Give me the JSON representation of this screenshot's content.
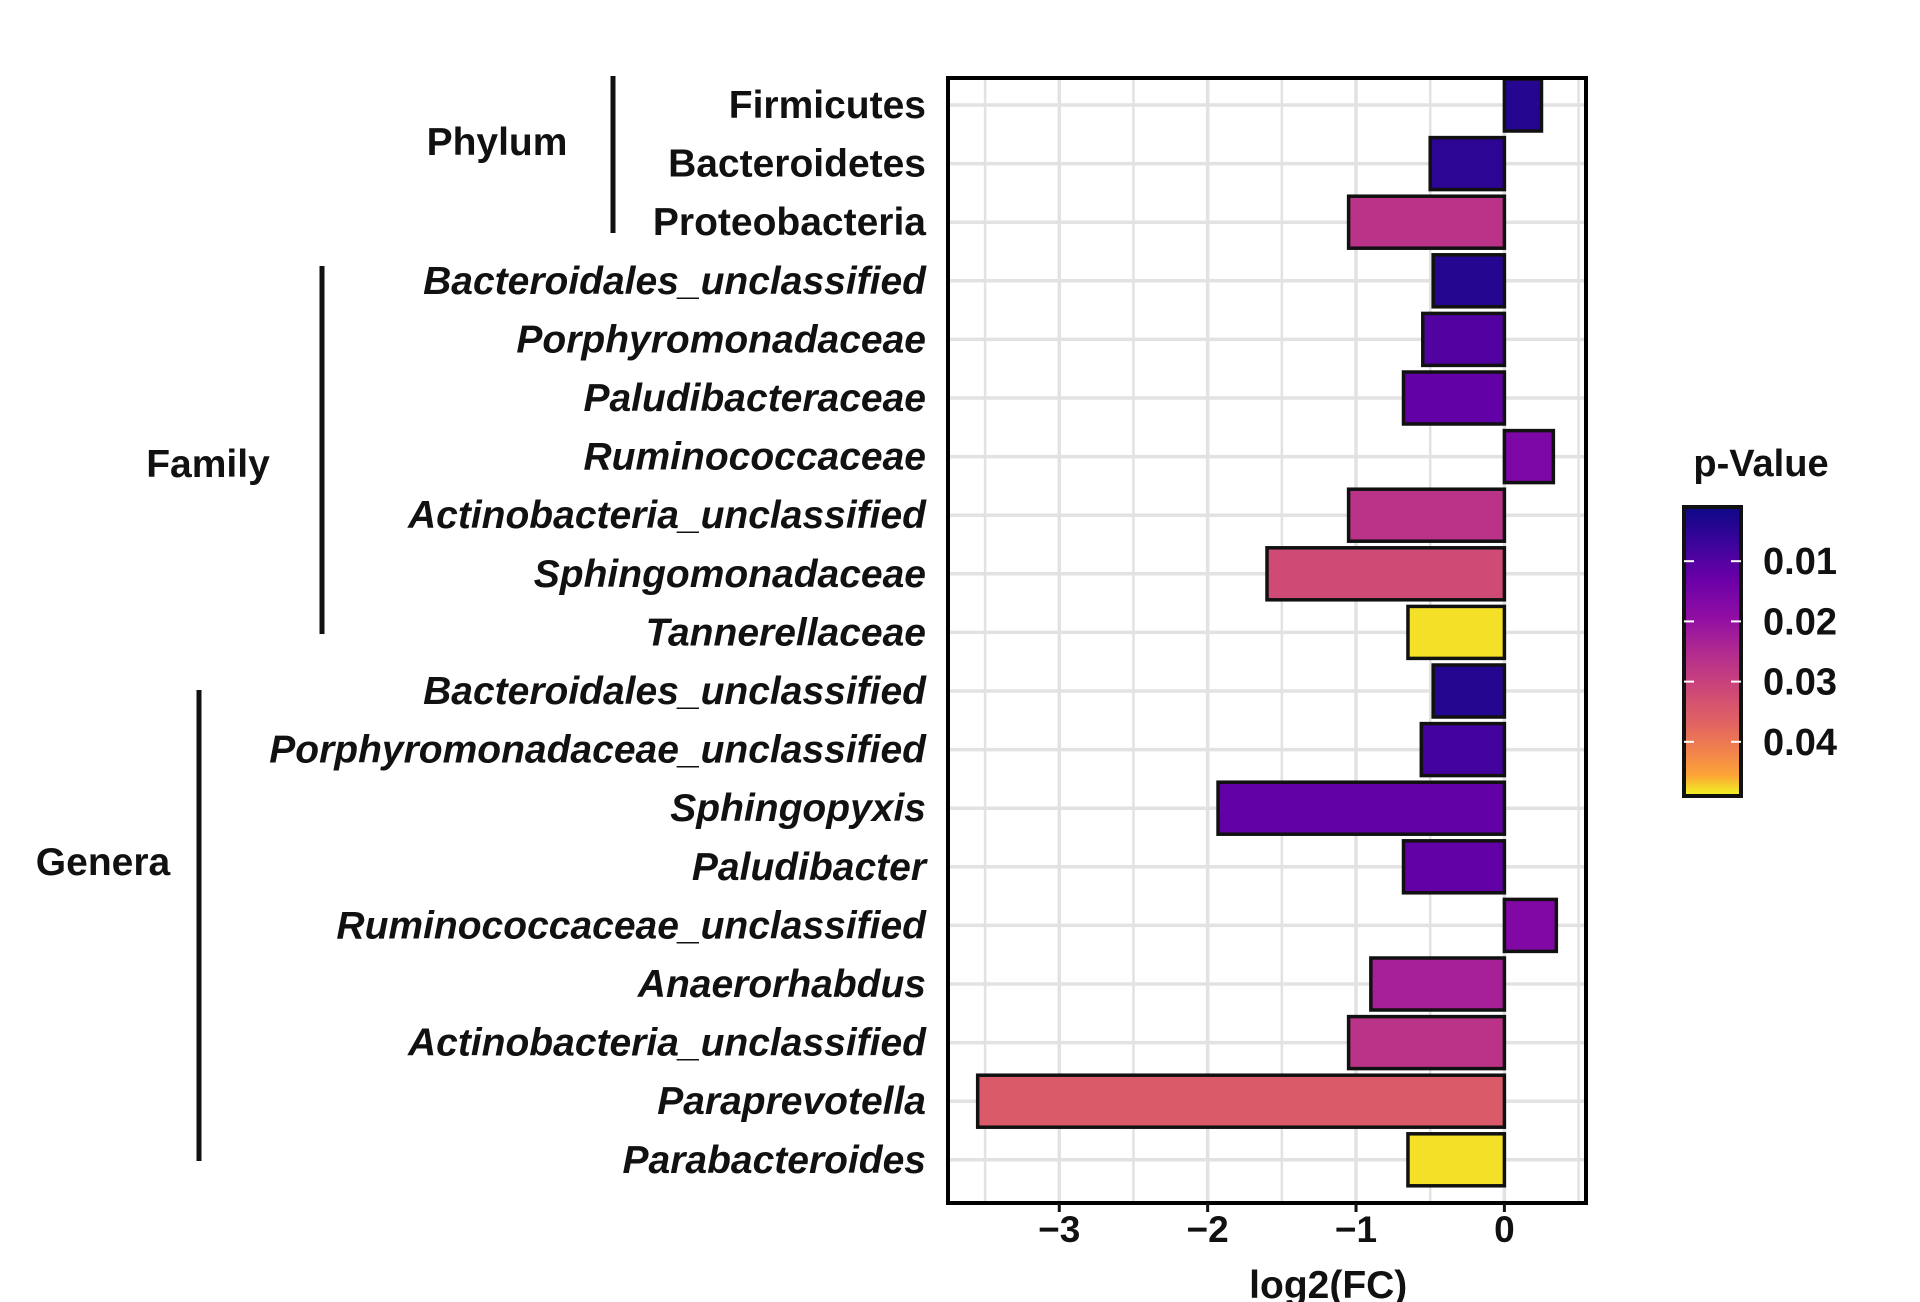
{
  "chart_data": {
    "type": "bar",
    "orientation": "horizontal",
    "xlabel": "log2(FC)",
    "ylabel": "",
    "xlim": [
      -3.75,
      0.55
    ],
    "xticks": [
      -3,
      -2,
      -1,
      0
    ],
    "xtick_labels": [
      "−3",
      "−2",
      "−1",
      "0"
    ],
    "grid": true,
    "groups": [
      {
        "name": "Phylum",
        "from": 0,
        "to": 2
      },
      {
        "name": "Family",
        "from": 3,
        "to": 9
      },
      {
        "name": "Genera",
        "from": 10,
        "to": 18
      }
    ],
    "categories": [
      {
        "label": "Firmicutes",
        "italic": false,
        "value": 0.25,
        "p": 0.004
      },
      {
        "label": "Bacteroidetes",
        "italic": false,
        "value": -0.5,
        "p": 0.005
      },
      {
        "label": "Proteobacteria",
        "italic": false,
        "value": -1.05,
        "p": 0.027
      },
      {
        "label": "Bacteroidales_unclassified",
        "italic": true,
        "value": -0.48,
        "p": 0.004
      },
      {
        "label": "Porphyromonadaceae",
        "italic": true,
        "value": -0.55,
        "p": 0.01
      },
      {
        "label": "Paludibacteraceae",
        "italic": true,
        "value": -0.68,
        "p": 0.012
      },
      {
        "label": "Ruminococcaceae",
        "italic": true,
        "value": 0.33,
        "p": 0.016
      },
      {
        "label": "Actinobacteria_unclassified",
        "italic": true,
        "value": -1.05,
        "p": 0.027
      },
      {
        "label": "Sphingomonadaceae",
        "italic": true,
        "value": -1.6,
        "p": 0.032
      },
      {
        "label": "Tannerellaceae",
        "italic": true,
        "value": -0.65,
        "p": 0.048
      },
      {
        "label": "Bacteroidales_unclassified",
        "italic": true,
        "value": -0.48,
        "p": 0.004
      },
      {
        "label": "Porphyromonadaceae_unclassified",
        "italic": true,
        "value": -0.56,
        "p": 0.008
      },
      {
        "label": "Sphingopyxis",
        "italic": true,
        "value": -1.93,
        "p": 0.012
      },
      {
        "label": "Paludibacter",
        "italic": true,
        "value": -0.68,
        "p": 0.012
      },
      {
        "label": "Ruminococcaceae_unclassified",
        "italic": true,
        "value": 0.35,
        "p": 0.017
      },
      {
        "label": "Anaerorhabdus",
        "italic": true,
        "value": -0.9,
        "p": 0.023
      },
      {
        "label": "Actinobacteria_unclassified",
        "italic": true,
        "value": -1.05,
        "p": 0.027
      },
      {
        "label": "Paraprevotella",
        "italic": true,
        "value": -3.55,
        "p": 0.035
      },
      {
        "label": "Parabacteroides",
        "italic": true,
        "value": -0.65,
        "p": 0.048
      }
    ],
    "legend": {
      "title": "p-Value",
      "placement": "right",
      "colorscale": "plasma",
      "range": [
        0.001,
        0.049
      ],
      "ticks": [
        0.01,
        0.02,
        0.03,
        0.04
      ],
      "tick_labels": [
        "0.01",
        "0.02",
        "0.03",
        "0.04"
      ]
    }
  }
}
